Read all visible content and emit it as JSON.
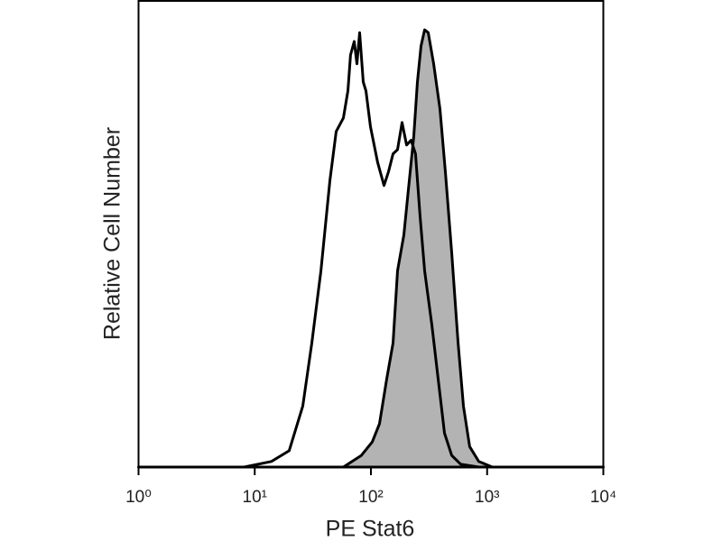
{
  "chart_data": {
    "type": "line",
    "xlabel": "PE Stat6",
    "ylabel": "Relative Cell Number",
    "xscale": "log",
    "xlim": [
      1,
      10000
    ],
    "ylim": [
      0,
      100
    ],
    "xticks": [
      {
        "value": 1,
        "label": "10⁰"
      },
      {
        "value": 10,
        "label": "10¹"
      },
      {
        "value": 100,
        "label": "10²"
      },
      {
        "value": 1000,
        "label": "10³"
      },
      {
        "value": 10000,
        "label": "10⁴"
      }
    ],
    "series": [
      {
        "color": "#000000",
        "fill": "#b3b3b3",
        "x": [
          1,
          58,
          82.8,
          102.8,
          118.6,
          136.8,
          154.9,
          169.4,
          192.2,
          209.9,
          233.9,
          251.2,
          269.8,
          289.7,
          311.2,
          346.7,
          392.6,
          437.5,
          495.5,
          562.3,
          625.2,
          708,
          847.2,
          1109,
          10000
        ],
        "values": [
          0,
          0,
          2.5,
          5.4,
          9.3,
          18.9,
          26.6,
          42.1,
          49.8,
          59.5,
          71,
          82.6,
          90.3,
          93.8,
          93.2,
          86.5,
          76.8,
          63.3,
          46,
          26.6,
          13.1,
          4.4,
          1.2,
          0,
          0
        ]
      },
      {
        "color": "#000000",
        "fill": null,
        "x": [
          1,
          8.1,
          13.9,
          19.8,
          25.9,
          31,
          37.1,
          44.3,
          50.2,
          58,
          63.4,
          66.8,
          71.8,
          75.8,
          80,
          85.9,
          90.6,
          99.1,
          114.3,
          129.6,
          141.6,
          154.9,
          169.4,
          185.3,
          202.8,
          221.8,
          242.1,
          264.9,
          289.7,
          334.2,
          379.3,
          429.5,
          495.5,
          592.9,
          847.2,
          10000
        ],
        "values": [
          0,
          0,
          1.2,
          3.5,
          13.1,
          26.6,
          42.1,
          61.4,
          72,
          74.9,
          80.7,
          88.4,
          91.3,
          86.5,
          93.2,
          82.6,
          80.7,
          73,
          65.3,
          60.4,
          63.3,
          67.2,
          68.1,
          73.9,
          69.1,
          70.1,
          67.2,
          53.7,
          42.1,
          30.5,
          18.9,
          7.3,
          2.5,
          0.6,
          0,
          0
        ]
      }
    ]
  }
}
